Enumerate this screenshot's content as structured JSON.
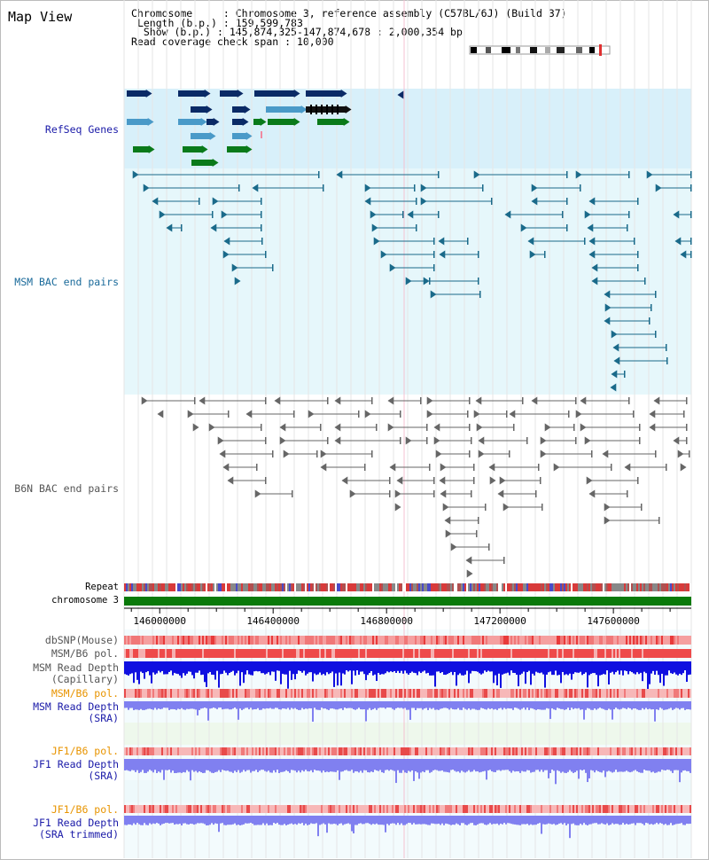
{
  "view": {
    "title": "Map View"
  },
  "info": {
    "chromosome_label": "Chromosome",
    "chromosome_value": "Chromosome 3, reference assembly (C57BL/6J) (Build 37)",
    "length_label": "Length (b.p.)",
    "length_value": "159,599,783",
    "show_label": "Show (b.p.)",
    "show_value": "145,874,325-147,874,678 : 2,000,354 bp",
    "coverage_label": "Read coverage check span",
    "coverage_value": "10,000"
  },
  "tracks": {
    "refseq": "RefSeq Genes",
    "msm_bac": "MSM BAC end pairs",
    "b6n_bac": "B6N BAC end pairs",
    "repeat": "Repeat",
    "chromosome": "chromosome 3",
    "dbsnp": "dbSNP(Mouse)",
    "msm_b6_pol_1": "MSM/B6 pol.",
    "msm_read_depth_cap_1": "MSM Read Depth",
    "msm_read_depth_cap_2": "(Capillary)",
    "msm_b6_pol_2": "MSM/B6 pol.",
    "msm_read_depth_sra_1": "MSM Read Depth",
    "msm_read_depth_sra_2": "(SRA)",
    "jf1_b6_pol_1": "JF1/B6 pol.",
    "jf1_read_depth_sra_1": "JF1 Read Depth",
    "jf1_read_depth_sra_2": "(SRA)",
    "jf1_b6_pol_2": "JF1/B6 pol.",
    "jf1_read_depth_trim_1": "JF1 Read Depth",
    "jf1_read_depth_trim_2": "(SRA trimmed)"
  },
  "axis": {
    "ticks": [
      "146000000",
      "146400000",
      "146800000",
      "147200000",
      "147600000"
    ],
    "tick_values": [
      146000000,
      146400000,
      146800000,
      147200000,
      147600000
    ],
    "range": [
      145874325,
      147874678
    ]
  },
  "colors": {
    "refseq_bg": "#d8f0fa",
    "msm_bg": "#e6f7fb",
    "gene_dark": "#0a2a66",
    "gene_light": "#4a9ac8",
    "gene_green": "#0a7a1a",
    "msm_pair": "#1a6a8a",
    "b6n_pair": "#666666",
    "chromosome_bar": "#0a7a0a",
    "depth_capillary": "#1010e0",
    "depth_sra": "#8080f0"
  }
}
